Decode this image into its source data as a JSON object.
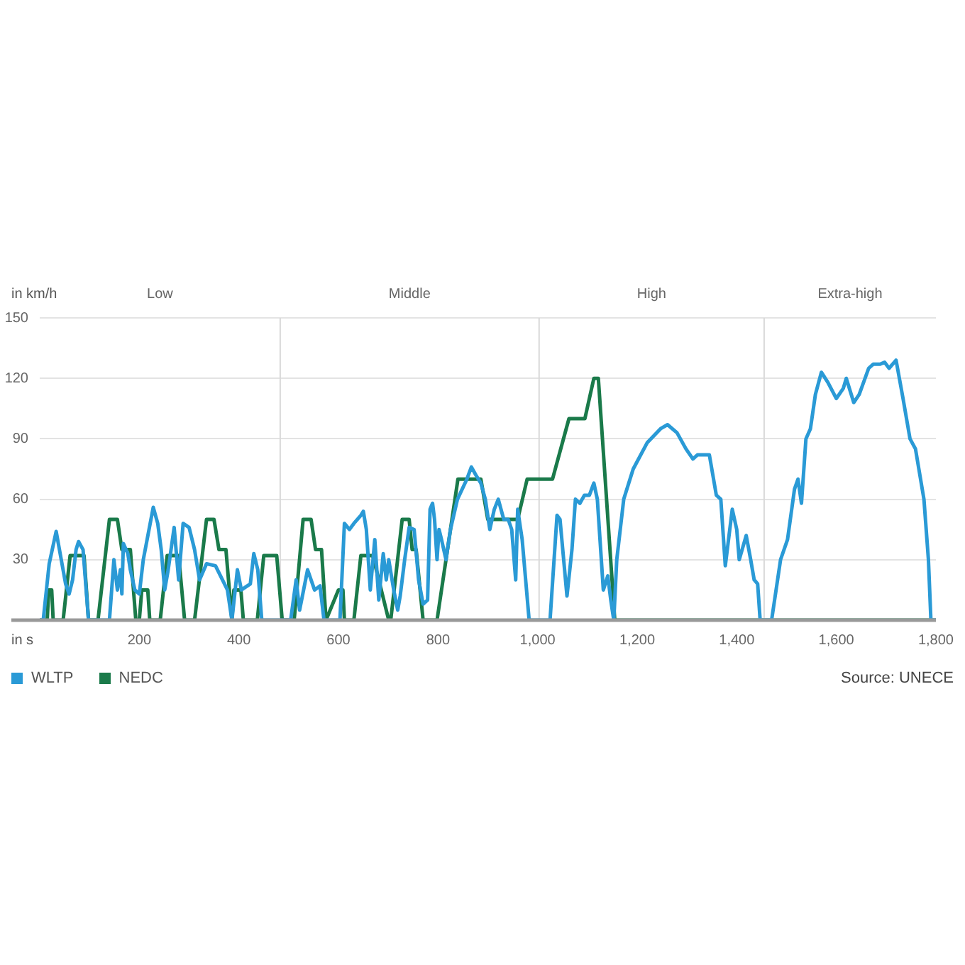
{
  "chart_data": {
    "type": "line",
    "xlabel": "in s",
    "ylabel": "in km/h",
    "xlim": [
      0,
      1800
    ],
    "xticks": [
      200,
      400,
      600,
      800,
      {
        "value": 1000,
        "label": "1,000"
      },
      {
        "value": 1200,
        "label": "1,200"
      },
      {
        "value": 1400,
        "label": "1,400"
      },
      {
        "value": 1600,
        "label": "1,600"
      },
      {
        "value": 1800,
        "label": "1,800"
      }
    ],
    "ylim": [
      0,
      150
    ],
    "yticks": [
      {
        "value": 0,
        "label": null
      },
      30,
      60,
      90,
      120,
      150
    ],
    "grid": "y",
    "legend": "bottom left",
    "marker": "none",
    "line_style": "solid",
    "ref_lines": [
      {
        "axis": "x",
        "value": 483,
        "color": "#d9d9d9"
      },
      {
        "axis": "x",
        "value": 1003,
        "color": "#d9d9d9"
      },
      {
        "axis": "x",
        "value": 1455,
        "color": "#d9d9d9"
      }
    ],
    "annotations": [
      "Low",
      "Middle",
      "High",
      "Extra-high",
      "Source: UNECE"
    ],
    "series": [
      {
        "name": "WLTP",
        "color": "#2a9ad6",
        "x": [
          0,
          7,
          19,
          33,
          52,
          59,
          66,
          73,
          78,
          87,
          98,
          140,
          149,
          156,
          162,
          165,
          168,
          177,
          182,
          191,
          200,
          208,
          228,
          237,
          244,
          251,
          258,
          270,
          279,
          288,
          300,
          311,
          321,
          335,
          353,
          367,
          377,
          386,
          397,
          405,
          423,
          430,
          438,
          446,
          504,
          515,
          522,
          538,
          552,
          563,
          571,
          603,
          612,
          622,
          631,
          645,
          650,
          656,
          664,
          673,
          681,
          690,
          696,
          701,
          711,
          719,
          724,
          733,
          742,
          752,
          761,
          770,
          779,
          784,
          789,
          793,
          798,
          802,
          807,
          816,
          825,
          839,
          858,
          867,
          876,
          886,
          895,
          904,
          913,
          921,
          932,
          941,
          948,
          956,
          960,
          969,
          983,
          1025,
          1039,
          1045,
          1059,
          1069,
          1076,
          1085,
          1094,
          1104,
          1113,
          1120,
          1132,
          1141,
          1147,
          1153,
          1159,
          1173,
          1192,
          1220,
          1247,
          1261,
          1280,
          1298,
          1312,
          1321,
          1345,
          1359,
          1368,
          1377,
          1391,
          1400,
          1405,
          1419,
          1428,
          1435,
          1442,
          1447,
          1470,
          1488,
          1502,
          1516,
          1523,
          1530,
          1539,
          1548,
          1558,
          1570,
          1583,
          1600,
          1614,
          1620,
          1635,
          1646,
          1665,
          1674,
          1688,
          1697,
          1706,
          1720,
          1734,
          1748,
          1759,
          1776,
          1785,
          1790,
          1800
        ],
        "values": [
          0,
          0,
          28,
          44,
          18,
          13,
          20,
          35,
          39,
          35,
          0,
          0,
          30,
          15,
          25,
          13,
          38,
          33,
          25,
          15,
          13,
          30,
          56,
          48,
          35,
          15,
          25,
          46,
          20,
          48,
          46,
          35,
          20,
          28,
          27,
          20,
          15,
          0,
          25,
          15,
          18,
          33,
          25,
          0,
          0,
          20,
          5,
          25,
          15,
          17,
          0,
          0,
          48,
          45,
          48,
          52,
          54,
          45,
          15,
          40,
          10,
          33,
          20,
          30,
          15,
          5,
          12,
          30,
          46,
          45,
          20,
          8,
          10,
          55,
          58,
          50,
          30,
          45,
          40,
          30,
          45,
          60,
          70,
          76,
          72,
          68,
          60,
          45,
          55,
          60,
          50,
          50,
          45,
          20,
          55,
          40,
          0,
          0,
          52,
          50,
          12,
          35,
          60,
          58,
          62,
          62,
          68,
          60,
          15,
          22,
          10,
          0,
          30,
          60,
          75,
          88,
          95,
          97,
          93,
          85,
          80,
          82,
          82,
          62,
          60,
          27,
          55,
          45,
          30,
          42,
          30,
          20,
          18,
          0,
          0,
          30,
          40,
          65,
          70,
          58,
          90,
          95,
          112,
          123,
          118,
          110,
          115,
          120,
          108,
          112,
          125,
          127,
          127,
          128,
          125,
          129,
          110,
          90,
          85,
          60,
          30,
          0,
          0
        ]
      },
      {
        "name": "NEDC",
        "color": "#1a7a4a",
        "x": [
          0,
          15,
          18,
          24,
          27,
          47,
          61,
          89,
          98,
          117,
          140,
          156,
          165,
          182,
          193,
          200,
          205,
          217,
          221,
          242,
          256,
          279,
          291,
          311,
          335,
          350,
          360,
          374,
          386,
          390,
          404,
          409,
          437,
          450,
          476,
          487,
          511,
          529,
          545,
          554,
          566,
          575,
          600,
          609,
          612,
          631,
          645,
          669,
          701,
          705,
          728,
          742,
          748,
          756,
          770,
          798,
          840,
          886,
          900,
          960,
          979,
          1030,
          1063,
          1095,
          1113,
          1122,
          1155,
          1800
        ],
        "values": [
          0,
          0,
          15,
          15,
          0,
          0,
          32,
          32,
          0,
          0,
          50,
          50,
          35,
          35,
          0,
          0,
          15,
          15,
          0,
          0,
          32,
          32,
          0,
          0,
          50,
          50,
          35,
          35,
          0,
          15,
          15,
          0,
          0,
          32,
          32,
          0,
          0,
          50,
          50,
          35,
          35,
          0,
          15,
          15,
          0,
          0,
          32,
          32,
          0,
          0,
          50,
          50,
          35,
          35,
          0,
          0,
          70,
          70,
          50,
          50,
          70,
          70,
          100,
          100,
          120,
          120,
          0,
          0
        ]
      }
    ]
  }
}
